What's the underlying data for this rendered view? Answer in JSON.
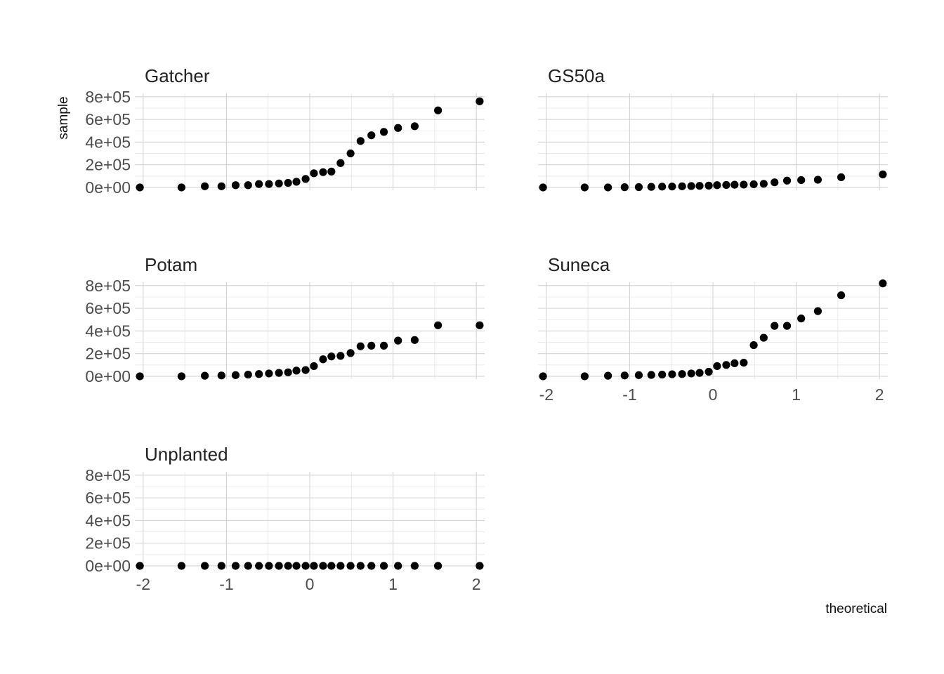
{
  "chart_data": {
    "type": "scatter",
    "title": "",
    "xlabel": "theoretical",
    "ylabel": "sample",
    "xlim": [
      -2.1,
      2.1
    ],
    "ylim": [
      -25000,
      830000
    ],
    "x_ticks": [
      -2,
      -1,
      0,
      1,
      2
    ],
    "x_tick_labels": [
      "-2",
      "-1",
      "0",
      "1",
      "2"
    ],
    "y_ticks": [
      0,
      200000,
      400000,
      600000,
      800000
    ],
    "y_tick_labels": [
      "0e+00",
      "2e+05",
      "4e+05",
      "6e+05",
      "8e+05"
    ],
    "grid": true,
    "point_color": "#000000",
    "panels": [
      {
        "name": "Gatcher",
        "x": [
          -2.04,
          -1.54,
          -1.26,
          -1.06,
          -0.89,
          -0.74,
          -0.61,
          -0.49,
          -0.37,
          -0.26,
          -0.16,
          -0.05,
          0.05,
          0.16,
          0.26,
          0.37,
          0.49,
          0.61,
          0.74,
          0.89,
          1.06,
          1.26,
          1.54,
          2.04
        ],
        "y": [
          0,
          0,
          10000,
          10000,
          20000,
          20000,
          30000,
          30000,
          35000,
          40000,
          50000,
          75000,
          125000,
          135000,
          140000,
          215000,
          300000,
          410000,
          460000,
          490000,
          525000,
          540000,
          680000,
          760000
        ]
      },
      {
        "name": "GS50a",
        "x": [
          -2.04,
          -1.54,
          -1.26,
          -1.06,
          -0.89,
          -0.74,
          -0.61,
          -0.49,
          -0.37,
          -0.26,
          -0.16,
          -0.05,
          0.05,
          0.16,
          0.26,
          0.37,
          0.49,
          0.61,
          0.74,
          0.89,
          1.06,
          1.26,
          1.54,
          2.04
        ],
        "y": [
          0,
          0,
          0,
          2000,
          3000,
          5000,
          7000,
          8000,
          10000,
          12000,
          14000,
          16000,
          20000,
          22000,
          24000,
          25000,
          28000,
          32000,
          45000,
          60000,
          65000,
          68000,
          90000,
          115000
        ]
      },
      {
        "name": "Potam",
        "x": [
          -2.04,
          -1.54,
          -1.26,
          -1.06,
          -0.89,
          -0.74,
          -0.61,
          -0.49,
          -0.37,
          -0.26,
          -0.16,
          -0.05,
          0.05,
          0.16,
          0.26,
          0.37,
          0.49,
          0.61,
          0.74,
          0.89,
          1.06,
          1.26,
          1.54,
          2.04
        ],
        "y": [
          0,
          0,
          5000,
          7000,
          10000,
          15000,
          20000,
          25000,
          30000,
          35000,
          50000,
          55000,
          90000,
          150000,
          175000,
          180000,
          205000,
          265000,
          270000,
          270000,
          315000,
          320000,
          450000,
          450000
        ]
      },
      {
        "name": "Suneca",
        "x": [
          -2.04,
          -1.54,
          -1.26,
          -1.06,
          -0.89,
          -0.74,
          -0.61,
          -0.49,
          -0.37,
          -0.26,
          -0.16,
          -0.05,
          0.05,
          0.16,
          0.26,
          0.37,
          0.49,
          0.61,
          0.74,
          0.89,
          1.06,
          1.26,
          1.54,
          2.04
        ],
        "y": [
          0,
          0,
          5000,
          7000,
          10000,
          12000,
          15000,
          18000,
          20000,
          25000,
          30000,
          40000,
          90000,
          100000,
          115000,
          120000,
          275000,
          340000,
          445000,
          445000,
          510000,
          575000,
          715000,
          820000
        ]
      },
      {
        "name": "Unplanted",
        "x": [
          -2.04,
          -1.54,
          -1.26,
          -1.06,
          -0.89,
          -0.74,
          -0.61,
          -0.49,
          -0.37,
          -0.26,
          -0.16,
          -0.05,
          0.05,
          0.16,
          0.26,
          0.37,
          0.49,
          0.61,
          0.74,
          0.89,
          1.06,
          1.26,
          1.54,
          2.04
        ],
        "y": [
          0,
          0,
          0,
          0,
          0,
          0,
          0,
          0,
          0,
          0,
          0,
          0,
          0,
          0,
          0,
          0,
          0,
          0,
          0,
          0,
          0,
          0,
          0,
          0
        ]
      }
    ]
  }
}
